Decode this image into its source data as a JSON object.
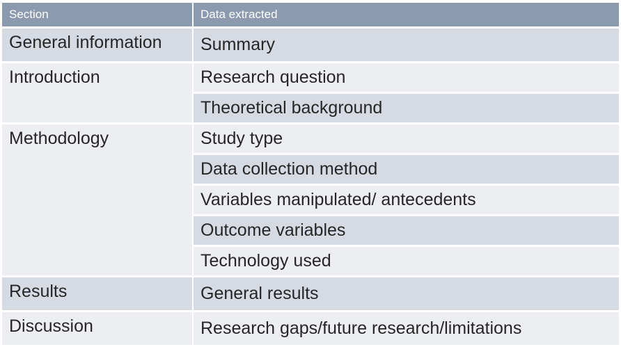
{
  "table": {
    "headers": [
      "Section",
      "Data extracted"
    ],
    "sections": [
      {
        "name": "General information",
        "items": [
          "Summary"
        ]
      },
      {
        "name": "Introduction",
        "items": [
          "Research question",
          "Theoretical background"
        ]
      },
      {
        "name": "Methodology",
        "items": [
          "Study type",
          "Data collection method",
          "Variables manipulated/ antecedents",
          "Outcome variables",
          "Technology used"
        ]
      },
      {
        "name": "Results",
        "items": [
          "General results"
        ]
      },
      {
        "name": "Discussion",
        "items": [
          "Research gaps/future research/limitations"
        ]
      }
    ]
  },
  "colors": {
    "header_bg": "#8b9aae",
    "row_dark": "#d5dae3",
    "row_light": "#eceef2"
  }
}
